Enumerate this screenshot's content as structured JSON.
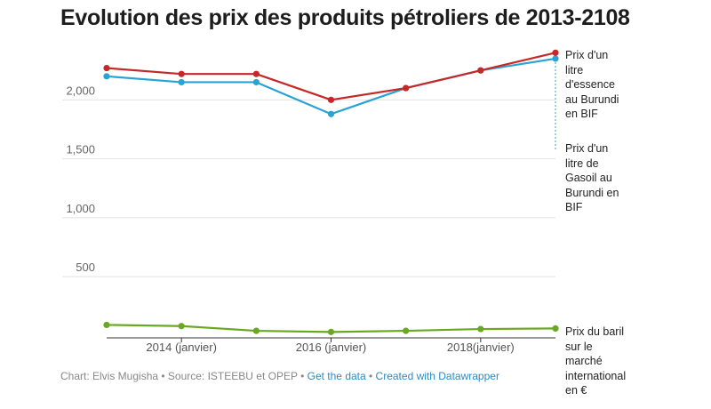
{
  "chart_data": {
    "type": "line",
    "title": "Evolution des prix des produits pétroliers de 2013-2108",
    "x": [
      2013,
      2014,
      2015,
      2016,
      2017,
      2018,
      2019
    ],
    "x_ticks": [
      {
        "x": 2014,
        "label": "2014 (janvier)"
      },
      {
        "x": 2016,
        "label": "2016 (janvier)"
      },
      {
        "x": 2018,
        "label": "2018(janvier)"
      }
    ],
    "y_ticks": [
      {
        "value": 500,
        "label": "500"
      },
      {
        "value": 1000,
        "label": "1,000"
      },
      {
        "value": 1500,
        "label": "1,500"
      },
      {
        "value": 2000,
        "label": "2,000"
      }
    ],
    "xlim": [
      2013,
      2019
    ],
    "ylim": [
      -20,
      2410
    ],
    "grid": true,
    "series": [
      {
        "name": "Prix d'un litre d'essence au Burundi en BIF",
        "color": "#c62828",
        "values": [
          2270,
          2220,
          2220,
          2000,
          2100,
          2250,
          2400
        ]
      },
      {
        "name": "Prix d'un litre de Gasoil au Burundi en BIF",
        "color": "#29a3d4",
        "values": [
          2200,
          2150,
          2150,
          1880,
          2100,
          2250,
          2350
        ]
      },
      {
        "name": "Prix du baril sur le marché international en €",
        "color": "#6aa821",
        "values": [
          90,
          80,
          40,
          30,
          40,
          55,
          60
        ]
      }
    ]
  },
  "labels": {
    "essence": [
      "Prix d'un",
      "litre",
      "d'essence",
      "au Burundi",
      "en BIF"
    ],
    "gasoil": [
      "Prix d'un",
      "litre de",
      "Gasoil au",
      "Burundi en",
      "BIF"
    ],
    "baril": [
      "Prix du baril",
      "sur le",
      "marché",
      "international",
      "en €"
    ]
  },
  "footer": {
    "credit": "Chart: Elvis Mugisha • Source: ISTEEBU et OPEP • ",
    "get_data": "Get the data",
    "sep": " • ",
    "created_with": "Created with Datawrapper"
  },
  "colors": {
    "accent_link": "#2a8cc7",
    "grid": "#e2e2e2"
  }
}
